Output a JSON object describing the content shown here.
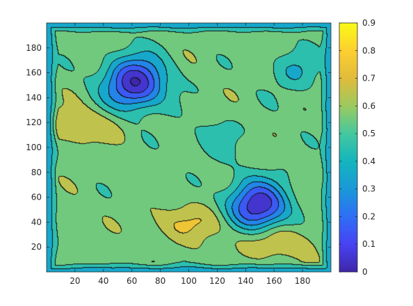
{
  "chart_data": {
    "type": "heatmap",
    "title": "",
    "xlabel": "",
    "ylabel": "",
    "xlim": [
      0,
      200
    ],
    "ylim": [
      0,
      200
    ],
    "x_ticks": [
      20,
      40,
      60,
      80,
      100,
      120,
      140,
      160,
      180
    ],
    "y_ticks": [
      20,
      40,
      60,
      80,
      100,
      120,
      140,
      160,
      180
    ],
    "colorbar": {
      "limits": [
        0,
        0.9
      ],
      "ticks": [
        0,
        0.1,
        0.2,
        0.3,
        0.4,
        0.5,
        0.6,
        0.7,
        0.8,
        0.9
      ],
      "colormap": "parula",
      "colors": [
        "#3e26a8",
        "#4743f2",
        "#2e6ff5",
        "#1a98d8",
        "#14b5be",
        "#45c89e",
        "#9cca5e",
        "#e1bb3c",
        "#fdcf30",
        "#f9fb15"
      ]
    },
    "background_level": 0.55,
    "features": [
      {
        "kind": "low",
        "name": "upper-left basin",
        "x": 62,
        "y": 152,
        "value": 0.0
      },
      {
        "kind": "low",
        "name": "lower-right basin",
        "x": 148,
        "y": 52,
        "value": 0.0
      },
      {
        "kind": "ridge",
        "name": "bottom-right ridge",
        "x": 160,
        "y": 25,
        "value": 0.72
      },
      {
        "kind": "ridge",
        "name": "left ridge",
        "x": 20,
        "y": 118,
        "value": 0.7
      },
      {
        "kind": "ridge",
        "name": "lower-middle ridge",
        "x": 105,
        "y": 40,
        "value": 0.7
      },
      {
        "kind": "trough",
        "name": "upper-right trough",
        "x": 175,
        "y": 162,
        "value": 0.4
      },
      {
        "kind": "trough",
        "name": "central trough",
        "x": 118,
        "y": 108,
        "value": 0.45
      },
      {
        "kind": "edge",
        "name": "domain boundary",
        "value": 0.3
      }
    ]
  }
}
